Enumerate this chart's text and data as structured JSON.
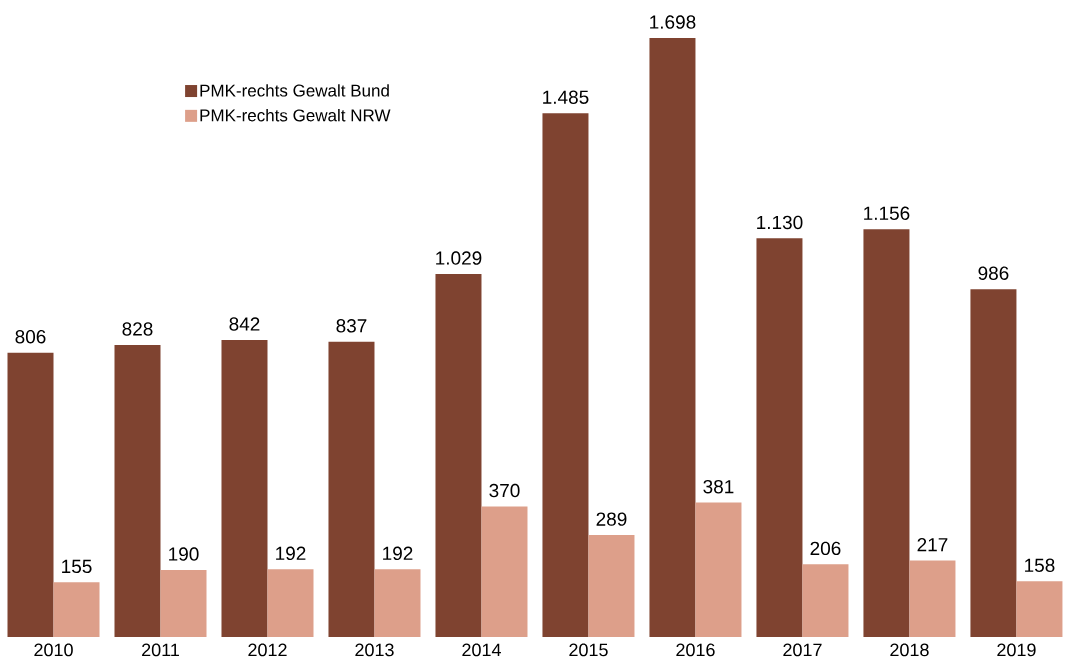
{
  "chart_data": {
    "type": "bar",
    "categories": [
      "2010",
      "2011",
      "2012",
      "2013",
      "2014",
      "2015",
      "2016",
      "2017",
      "2018",
      "2019"
    ],
    "series": [
      {
        "name": "PMK-rechts Gewalt Bund",
        "color": "#7f4330",
        "values": [
          806,
          828,
          842,
          837,
          1029,
          1485,
          1698,
          1130,
          1156,
          986
        ],
        "value_labels": [
          "806",
          "828",
          "842",
          "837",
          "1.029",
          "1.485",
          "1.698",
          "1.130",
          "1.156",
          "986"
        ]
      },
      {
        "name": "PMK-rechts Gewalt NRW",
        "color": "#dd9f8a",
        "values": [
          155,
          190,
          192,
          192,
          370,
          289,
          381,
          206,
          217,
          158
        ],
        "value_labels": [
          "155",
          "190",
          "192",
          "192",
          "370",
          "289",
          "381",
          "206",
          "217",
          "158"
        ]
      }
    ],
    "legend": "top left",
    "tick_labels": "x"
  }
}
